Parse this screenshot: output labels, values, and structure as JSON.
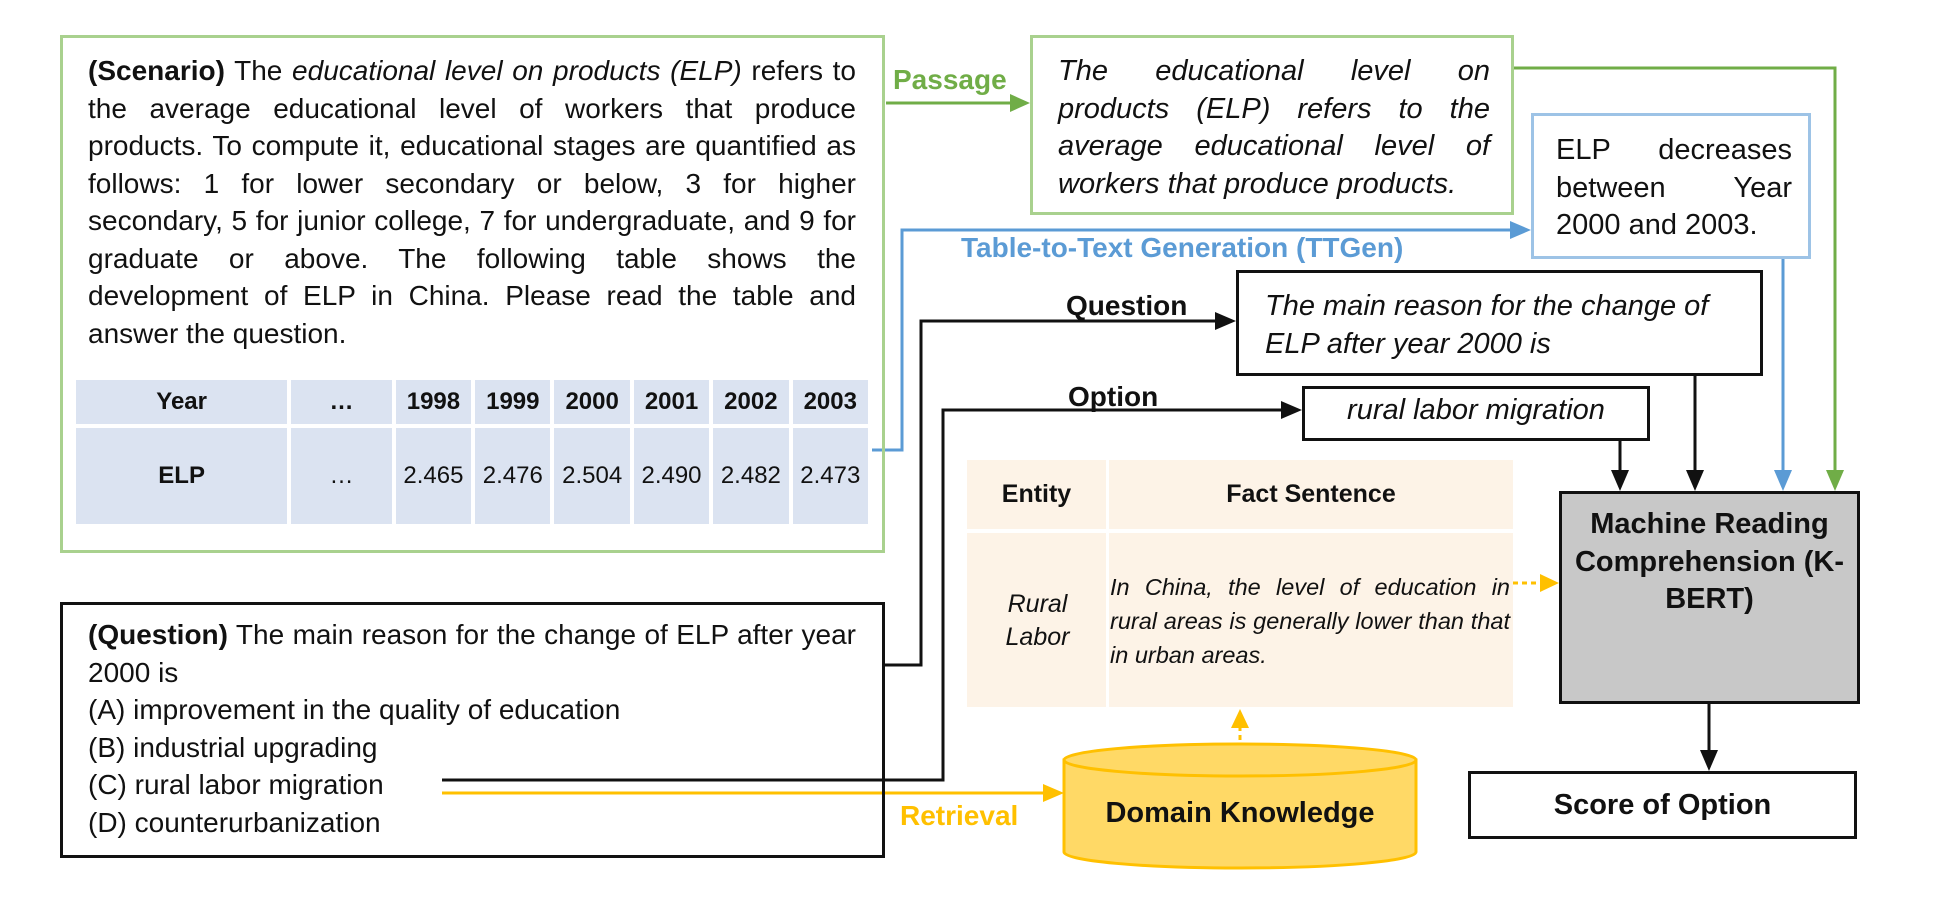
{
  "scenario": {
    "prefix": "(Scenario)",
    "lead": " The ",
    "term": "educational level on products (ELP)",
    "body": " refers to the average educational level of workers that produce products. To compute it, educational stages are quantified as follows: 1 for lower secondary or below, 3 for higher secondary, 5 for junior college, 7 for undergraduate, and 9 for graduate or above. The following table shows the development of ELP in China. Please read the table and answer the question."
  },
  "elp_table": {
    "header": [
      "Year",
      "…",
      "1998",
      "1999",
      "2000",
      "2001",
      "2002",
      "2003"
    ],
    "row": [
      "ELP",
      "…",
      "2.465",
      "2.476",
      "2.504",
      "2.490",
      "2.482",
      "2.473"
    ]
  },
  "passage": {
    "label": "Passage",
    "text": "The educational level on products (ELP) refers to the average educational level of workers that produce products."
  },
  "ttgen": {
    "label": "Table-to-Text Generation (TTGen)",
    "text": "ELP decreases between Year 2000 and 2003."
  },
  "question_node": {
    "label": "Question",
    "text": "The main reason for the change of ELP after year 2000 is"
  },
  "option_node": {
    "label": "Option",
    "text": "rural labor migration"
  },
  "knowledge_table": {
    "header_entity": "Entity",
    "header_fact": "Fact Sentence",
    "entity": "Rural Labor",
    "fact": "In China, the level of education in rural areas is generally lower than that in urban areas."
  },
  "mrc": {
    "text": "Machine Reading Comprehension (K-BERT)"
  },
  "score": {
    "text": "Score of Option"
  },
  "domain_knowledge": {
    "label": "Domain Knowledge"
  },
  "retrieval": {
    "label": "Retrieval"
  },
  "question_panel": {
    "prefix": "(Question)",
    "stem": " The main reason for the change of ELP after year 2000 is",
    "options": [
      "(A) improvement in the quality of education",
      "(B) industrial upgrading",
      "(C) rural labor migration",
      "(D) counterurbanization"
    ]
  },
  "colors": {
    "passage_green": "#70ad47",
    "ttgen_blue": "#5b9bd5",
    "retrieval_gold": "#ffc000",
    "mrc_gray": "#c8c8c8",
    "database_fill": "#ffd966"
  }
}
